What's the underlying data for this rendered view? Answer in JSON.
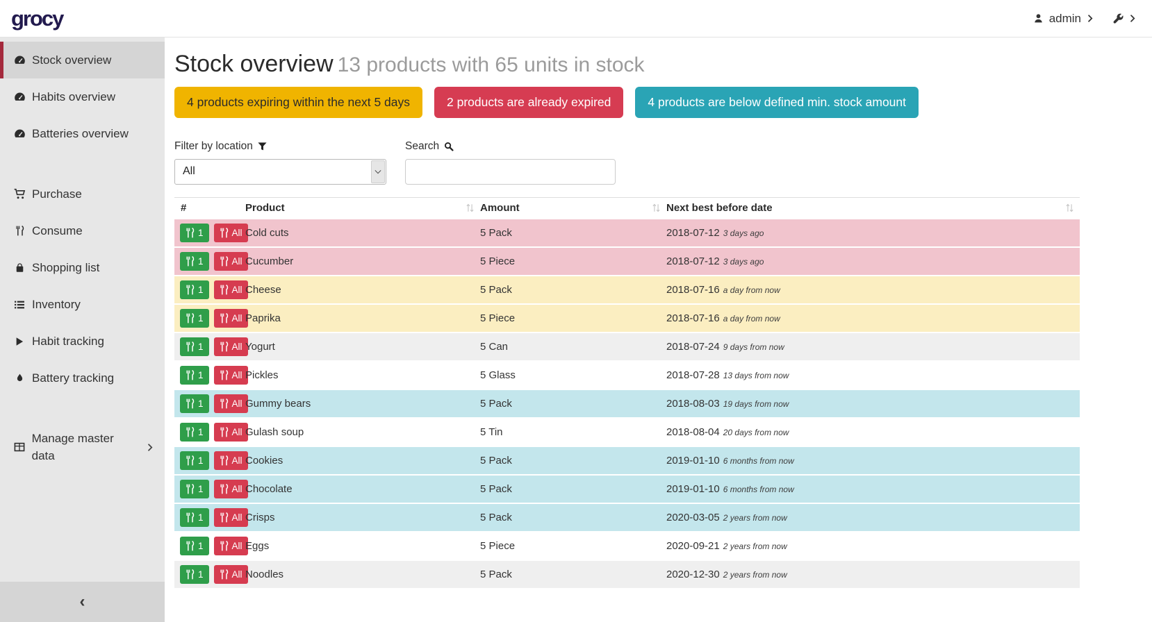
{
  "navbar": {
    "logo": "grocy",
    "user": "admin"
  },
  "sidebar": {
    "groups": [
      {
        "items": [
          {
            "label": "Stock overview",
            "icon": "tachometer",
            "active": true
          },
          {
            "label": "Habits overview",
            "icon": "tachometer",
            "active": false
          },
          {
            "label": "Batteries overview",
            "icon": "tachometer",
            "active": false
          }
        ]
      },
      {
        "items": [
          {
            "label": "Purchase",
            "icon": "cart",
            "active": false
          },
          {
            "label": "Consume",
            "icon": "cutlery",
            "active": false
          },
          {
            "label": "Shopping list",
            "icon": "bag",
            "active": false
          },
          {
            "label": "Inventory",
            "icon": "list",
            "active": false
          },
          {
            "label": "Habit tracking",
            "icon": "play",
            "active": false
          },
          {
            "label": "Battery tracking",
            "icon": "droplet",
            "active": false
          }
        ]
      },
      {
        "items": [
          {
            "label": "Manage master data",
            "icon": "table",
            "active": false,
            "chevron": true
          }
        ]
      }
    ],
    "collapse_icon": "‹"
  },
  "header": {
    "title": "Stock overview",
    "subtitle": "13 products with 65 units in stock"
  },
  "summary_badges": [
    {
      "id": "expiring",
      "label": "4 products expiring within the next 5 days",
      "bg": "#f0b400",
      "fg": "#2b2b2b"
    },
    {
      "id": "expired",
      "label": "2 products are already expired",
      "bg": "#d63c52",
      "fg": "#ffffff"
    },
    {
      "id": "below-min",
      "label": "4 products are below defined min. stock amount",
      "bg": "#2aa4b5",
      "fg": "#ffffff"
    }
  ],
  "filters": {
    "location_label": "Filter by location",
    "location_value": "All",
    "search_label": "Search",
    "search_value": ""
  },
  "table": {
    "columns": [
      {
        "label": "#",
        "sortable": false
      },
      {
        "label": "Product",
        "sortable": true
      },
      {
        "label": "Amount",
        "sortable": true
      },
      {
        "label": "Next best before date",
        "sortable": true
      }
    ],
    "row_buttons": {
      "consume_one": "1",
      "consume_all": "All"
    },
    "rows": [
      {
        "product": "Cold cuts",
        "amount": "5 Pack",
        "date": "2018-07-12",
        "ago": "3 days ago",
        "status": "expired"
      },
      {
        "product": "Cucumber",
        "amount": "5 Piece",
        "date": "2018-07-12",
        "ago": "3 days ago",
        "status": "expired"
      },
      {
        "product": "Cheese",
        "amount": "5 Pack",
        "date": "2018-07-16",
        "ago": "a day from now",
        "status": "expiring"
      },
      {
        "product": "Paprika",
        "amount": "5 Piece",
        "date": "2018-07-16",
        "ago": "a day from now",
        "status": "expiring"
      },
      {
        "product": "Yogurt",
        "amount": "5 Can",
        "date": "2018-07-24",
        "ago": "9 days from now",
        "status": "ok"
      },
      {
        "product": "Pickles",
        "amount": "5 Glass",
        "date": "2018-07-28",
        "ago": "13 days from now",
        "status": "ok"
      },
      {
        "product": "Gummy bears",
        "amount": "5 Pack",
        "date": "2018-08-03",
        "ago": "19 days from now",
        "status": "below_min"
      },
      {
        "product": "Gulash soup",
        "amount": "5 Tin",
        "date": "2018-08-04",
        "ago": "20 days from now",
        "status": "ok"
      },
      {
        "product": "Cookies",
        "amount": "5 Pack",
        "date": "2019-01-10",
        "ago": "6 months from now",
        "status": "below_min"
      },
      {
        "product": "Chocolate",
        "amount": "5 Pack",
        "date": "2019-01-10",
        "ago": "6 months from now",
        "status": "below_min"
      },
      {
        "product": "Crisps",
        "amount": "5 Pack",
        "date": "2020-03-05",
        "ago": "2 years from now",
        "status": "below_min"
      },
      {
        "product": "Eggs",
        "amount": "5 Piece",
        "date": "2020-09-21",
        "ago": "2 years from now",
        "status": "ok"
      },
      {
        "product": "Noodles",
        "amount": "5 Pack",
        "date": "2020-12-30",
        "ago": "2 years from now",
        "status": "ok"
      }
    ]
  },
  "colors": {
    "accent_red": "#a4293c",
    "logo": "#221a4e",
    "btn_green": "#2f9e4a",
    "btn_red": "#d63c50",
    "row_expired": "#f1c4cd",
    "row_expiring": "#fbeec1",
    "row_below_min": "#c3e6ec",
    "row_stripe": "#efefef"
  }
}
